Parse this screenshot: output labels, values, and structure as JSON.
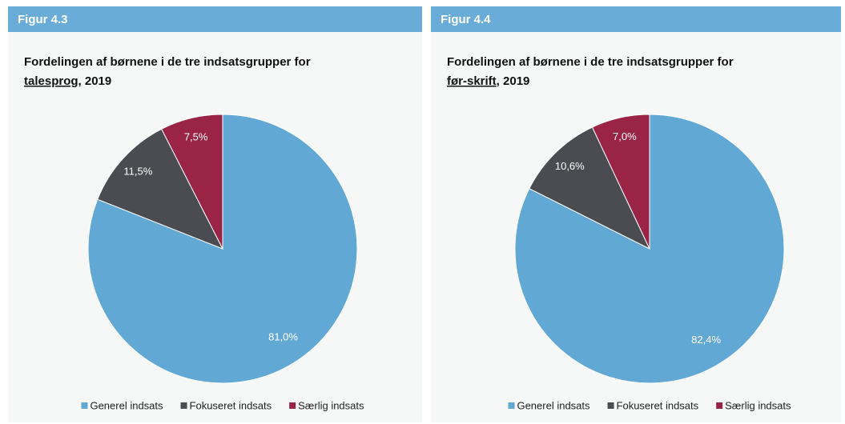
{
  "chart_data": [
    {
      "type": "pie",
      "figure": "Figur 4.3",
      "title": "Fordelingen af børnene i de tre indsatsgrupper for",
      "title_emphasis": "talesprog",
      "title_suffix": ", 2019",
      "categories": [
        "Generel indsats",
        "Fokuseret indsats",
        "Særlig indsats"
      ],
      "values": [
        81.0,
        11.5,
        7.5
      ],
      "value_labels": [
        "81,0%",
        "11,5%",
        "7,5%"
      ],
      "colors": [
        "#62a8d5",
        "#4b4c51",
        "#9a2446"
      ],
      "legend": "bottom"
    },
    {
      "type": "pie",
      "figure": "Figur 4.4",
      "title": "Fordelingen af børnene i de tre indsatsgrupper for",
      "title_emphasis": "før-skrift",
      "title_suffix": ", 2019",
      "categories": [
        "Generel indsats",
        "Fokuseret indsats",
        "Særlig indsats"
      ],
      "values": [
        82.4,
        10.6,
        7.0
      ],
      "value_labels": [
        "82,4%",
        "10,6%",
        "7,0%"
      ],
      "colors": [
        "#62a8d5",
        "#4b4c51",
        "#9a2446"
      ],
      "legend": "bottom"
    }
  ]
}
